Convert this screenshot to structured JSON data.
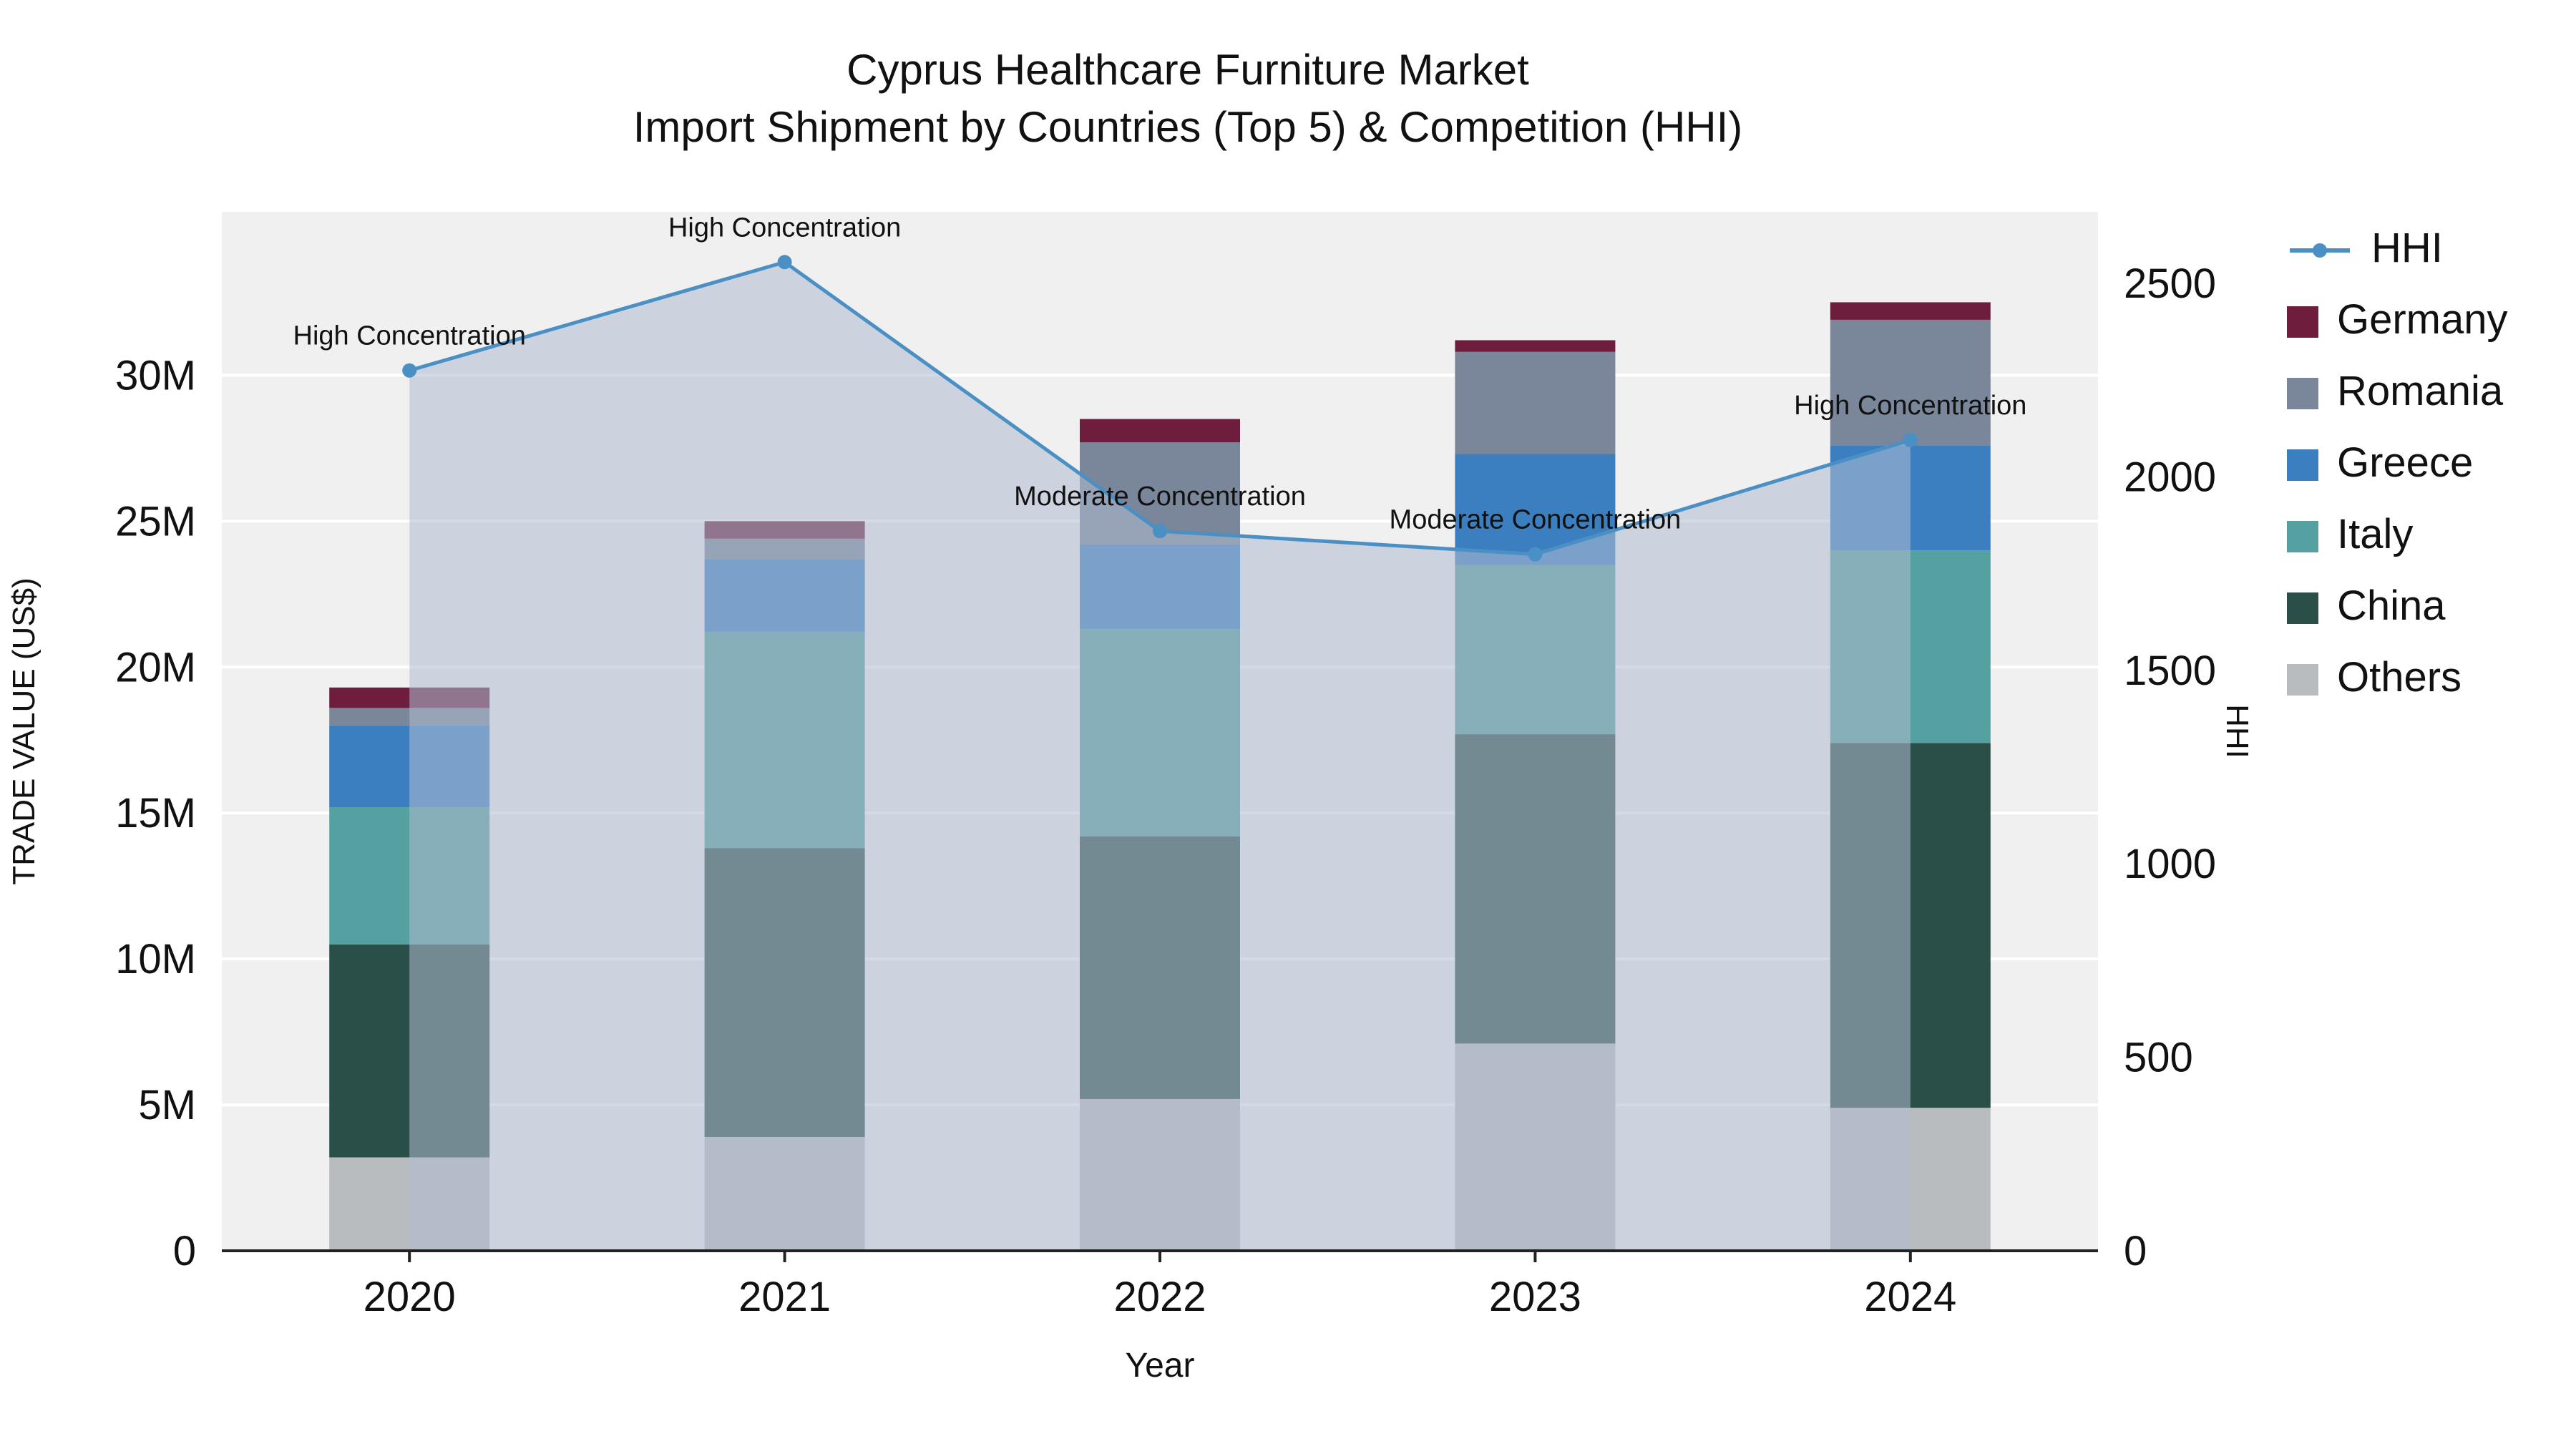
{
  "chart_data": {
    "type": "bar",
    "title": "Cyprus Healthcare Furniture Market",
    "subtitle": "Import Shipment by Countries (Top 5) & Competition (HHI)",
    "xlabel": "Year",
    "ylabel_left": "TRADE VALUE (US$)",
    "ylabel_right": "HHI",
    "categories": [
      2020,
      2021,
      2022,
      2023,
      2024
    ],
    "values_unit": "M US$",
    "series": [
      {
        "name": "Others",
        "color": "#b9bcbf",
        "values": [
          3.2,
          3.9,
          5.2,
          7.1,
          4.9
        ]
      },
      {
        "name": "China",
        "color": "#2a4f48",
        "values": [
          7.3,
          9.9,
          9.0,
          10.6,
          12.5
        ]
      },
      {
        "name": "Italy",
        "color": "#55a0a0",
        "values": [
          4.7,
          7.4,
          7.1,
          5.8,
          6.6
        ]
      },
      {
        "name": "Greece",
        "color": "#3c7fc0",
        "values": [
          2.8,
          2.5,
          2.9,
          3.8,
          3.6
        ]
      },
      {
        "name": "Romania",
        "color": "#7a8699",
        "values": [
          0.6,
          0.7,
          3.5,
          3.5,
          4.3
        ]
      },
      {
        "name": "Germany",
        "color": "#6e1e3c",
        "values": [
          0.7,
          0.6,
          0.8,
          0.4,
          0.6
        ]
      }
    ],
    "hhi": {
      "name": "HHI",
      "color": "#4a90c4",
      "fill": "rgba(174,188,207,0.55)",
      "values": [
        2275,
        2555,
        1860,
        1800,
        2095
      ]
    },
    "annotations": [
      {
        "x": 2020,
        "text": "High Concentration"
      },
      {
        "x": 2021,
        "text": "High Concentration"
      },
      {
        "x": 2022,
        "text": "Moderate Concentration"
      },
      {
        "x": 2023,
        "text": "Moderate Concentration"
      },
      {
        "x": 2024,
        "text": "High Concentration"
      }
    ],
    "y_left_ticks": [
      "0",
      "5M",
      "10M",
      "15M",
      "20M",
      "25M",
      "30M"
    ],
    "y_right_ticks": [
      "0",
      "500",
      "1000",
      "1500",
      "2000",
      "2500"
    ],
    "ylim_left": [
      0,
      35600000
    ],
    "ylim_right": [
      0,
      2685
    ],
    "legend_position": "right",
    "grid": true,
    "legend_order": [
      "HHI",
      "Germany",
      "Romania",
      "Greece",
      "Italy",
      "China",
      "Others"
    ]
  }
}
